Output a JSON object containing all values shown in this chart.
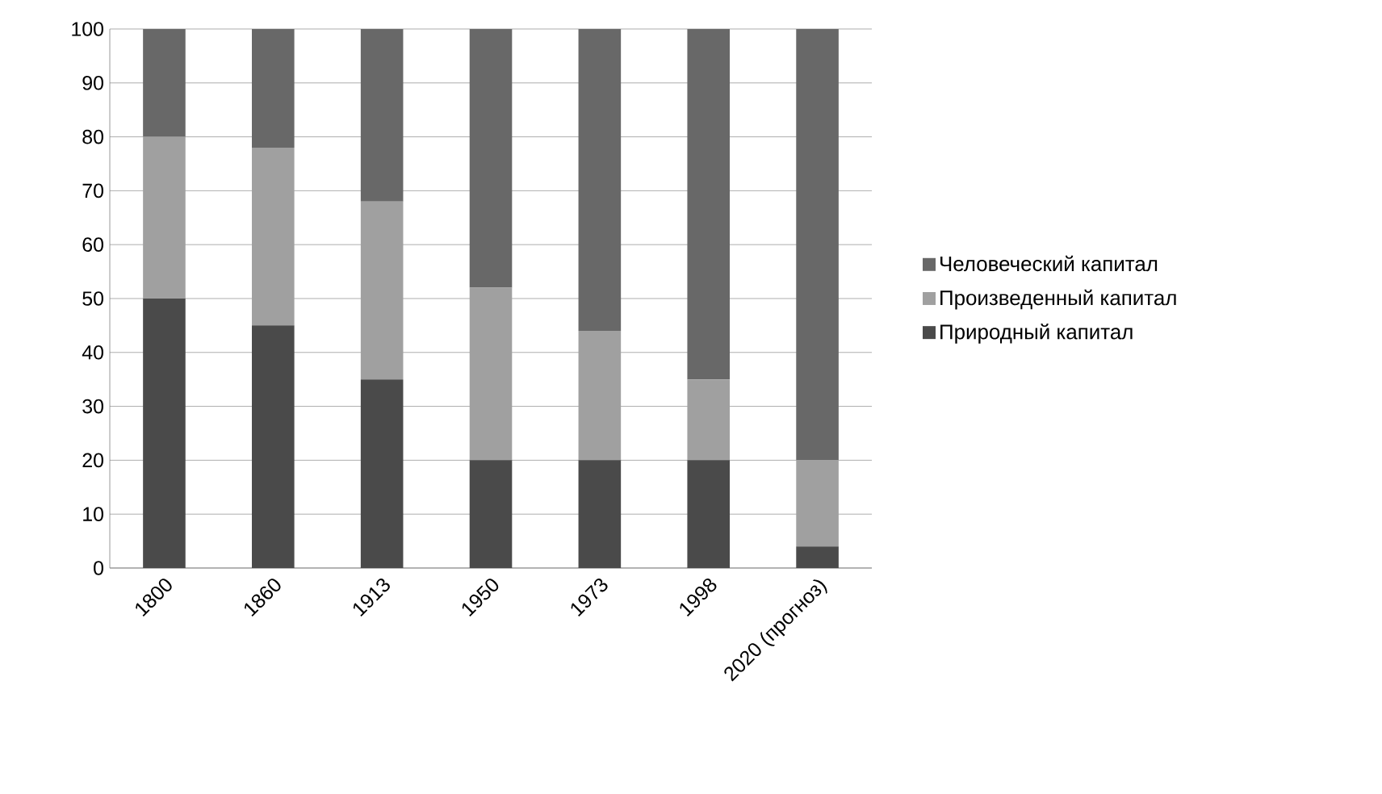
{
  "chart_data": {
    "type": "bar",
    "stacked": true,
    "categories": [
      "1800",
      "1860",
      "1913",
      "1950",
      "1973",
      "1998",
      "2020 (прогноз)"
    ],
    "series": [
      {
        "name": "Природный капитал",
        "color": "#4a4a4a",
        "values": [
          50,
          45,
          35,
          20,
          20,
          20,
          4
        ]
      },
      {
        "name": "Произведенный капитал",
        "color": "#a0a0a0",
        "values": [
          30,
          33,
          33,
          32,
          24,
          15,
          16
        ]
      },
      {
        "name": "Человеческий капитал",
        "color": "#686868",
        "values": [
          20,
          22,
          32,
          48,
          56,
          65,
          80
        ]
      }
    ],
    "ylim": [
      0,
      100
    ],
    "yticks": [
      0,
      10,
      20,
      30,
      40,
      50,
      60,
      70,
      80,
      90,
      100
    ],
    "grid": "y",
    "legend": "right"
  }
}
